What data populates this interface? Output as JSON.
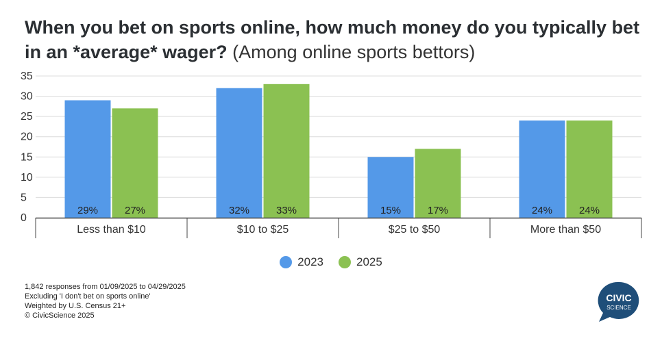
{
  "title": {
    "bold": "When you bet on sports online, how much money do you typically bet in an *average* wager?",
    "light": "(Among online sports bettors)"
  },
  "colors": {
    "s2023": "#5499e8",
    "s2025": "#8bc152",
    "grid": "#dcdcdc",
    "axis": "#444444"
  },
  "chart_data": {
    "type": "bar",
    "categories": [
      "Less than $10",
      "$10 to $25",
      "$25 to $50",
      "More than $50"
    ],
    "series": [
      {
        "name": "2023",
        "values": [
          29,
          32,
          15,
          24
        ],
        "labels": [
          "29%",
          "32%",
          "15%",
          "24%"
        ]
      },
      {
        "name": "2025",
        "values": [
          27,
          33,
          17,
          24
        ],
        "labels": [
          "27%",
          "33%",
          "17%",
          "24%"
        ]
      }
    ],
    "ylim": [
      0,
      35
    ],
    "yticks": [
      "0",
      "5",
      "10",
      "15",
      "20",
      "25",
      "30",
      "35"
    ],
    "xlabel": "",
    "ylabel": "",
    "grid": true,
    "legend": "bottom"
  },
  "legend": {
    "a": "2023",
    "b": "2025"
  },
  "notes": [
    "1,842 responses from 01/09/2025 to 04/29/2025",
    "Excluding 'I don't bet on sports online'",
    "Weighted by U.S. Census 21+",
    "© CivicScience 2025"
  ],
  "logo": {
    "line1": "CIVIC",
    "line2": "SCIENCE",
    "color": "#1f4e79"
  }
}
